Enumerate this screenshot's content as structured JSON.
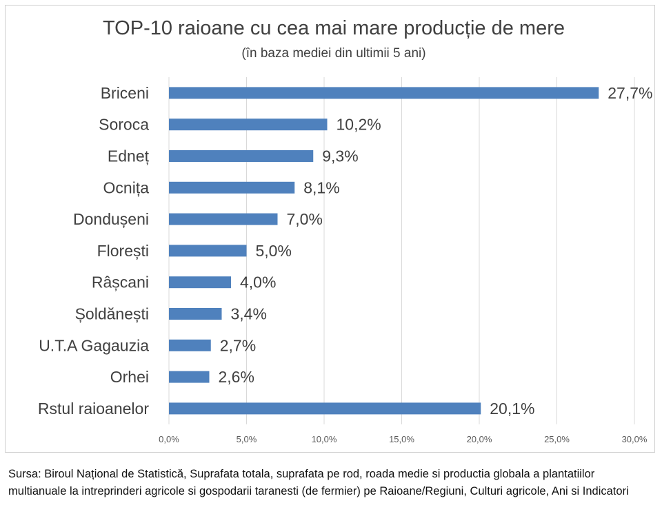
{
  "chart_data": {
    "type": "bar",
    "orientation": "horizontal",
    "title": "TOP-10 raioane cu cea mai mare producție de mere",
    "subtitle": "(în baza mediei din ultimii 5 ani)",
    "categories": [
      "Briceni",
      "Soroca",
      "Edneț",
      "Ocnița",
      "Dondușeni",
      "Florești",
      "Râșcani",
      "Șoldănești",
      "U.T.A Gagauzia",
      "Orhei",
      "Rstul raioanelor"
    ],
    "values": [
      27.7,
      10.2,
      9.3,
      8.1,
      7.0,
      5.0,
      4.0,
      3.4,
      2.7,
      2.6,
      20.1
    ],
    "value_labels": [
      "27,7%",
      "10,2%",
      "9,3%",
      "8,1%",
      "7,0%",
      "5,0%",
      "4,0%",
      "3,4%",
      "2,7%",
      "2,6%",
      "20,1%"
    ],
    "xlim": [
      0,
      30
    ],
    "x_ticks": [
      0,
      5,
      10,
      15,
      20,
      25,
      30
    ],
    "x_tick_labels": [
      "0,0%",
      "5,0%",
      "10,0%",
      "15,0%",
      "20,0%",
      "25,0%",
      "30,0%"
    ],
    "grid": "vertical",
    "legend": "none",
    "bar_color": "#4f81bd"
  },
  "source_text": "Sursa: Biroul Național de Statistică, Suprafata totala, suprafata pe rod, roada medie si productia globala a plantatiilor multianuale la intreprinderi agricole si gospodarii taranesti (de fermier) pe Raioane/Regiuni, Culturi agricole, Ani si Indicatori"
}
